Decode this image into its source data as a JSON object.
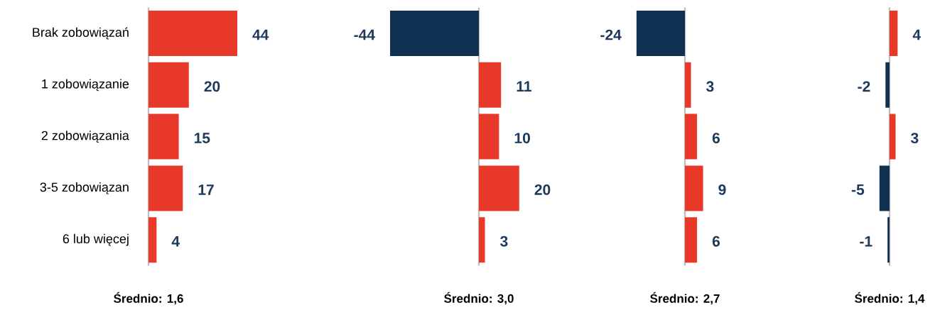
{
  "chart_data": [
    {
      "type": "bar",
      "orientation": "horizontal",
      "categories": [
        "Brak zobowiązań",
        "1 zobowiązanie",
        "2 zobowiązania",
        "3-5 zobowiązan",
        "6 lub więcej"
      ],
      "values": [
        44,
        20,
        15,
        17,
        4
      ],
      "colors": [
        "#e8382a",
        "#e8382a",
        "#e8382a",
        "#e8382a",
        "#e8382a"
      ],
      "data_labels": true,
      "annotations": [
        "Średnio: 1,6"
      ]
    },
    {
      "type": "bar",
      "orientation": "horizontal",
      "categories": [
        null,
        null,
        null,
        null,
        null
      ],
      "values": [
        -44,
        11,
        10,
        20,
        3
      ],
      "colors": [
        "#0f3050",
        "#e8382a",
        "#e8382a",
        "#e8382a",
        "#e8382a"
      ],
      "data_labels": true,
      "annotations": [
        "Średnio: 3,0"
      ]
    },
    {
      "type": "bar",
      "orientation": "horizontal",
      "categories": [
        null,
        null,
        null,
        null,
        null
      ],
      "values": [
        -24,
        3,
        6,
        9,
        6
      ],
      "colors": [
        "#0f3050",
        "#e8382a",
        "#e8382a",
        "#e8382a",
        "#e8382a"
      ],
      "data_labels": true,
      "annotations": [
        "Średnio: 2,7"
      ]
    },
    {
      "type": "bar",
      "orientation": "horizontal",
      "categories": [
        null,
        null,
        null,
        null,
        null
      ],
      "values": [
        4,
        -2,
        3,
        -5,
        -1
      ],
      "colors": [
        "#e8382a",
        "#0f3050",
        "#e8382a",
        "#0f3050",
        "#0f3050"
      ],
      "data_labels": true,
      "annotations": [
        "Średnio: 1,4"
      ]
    }
  ]
}
